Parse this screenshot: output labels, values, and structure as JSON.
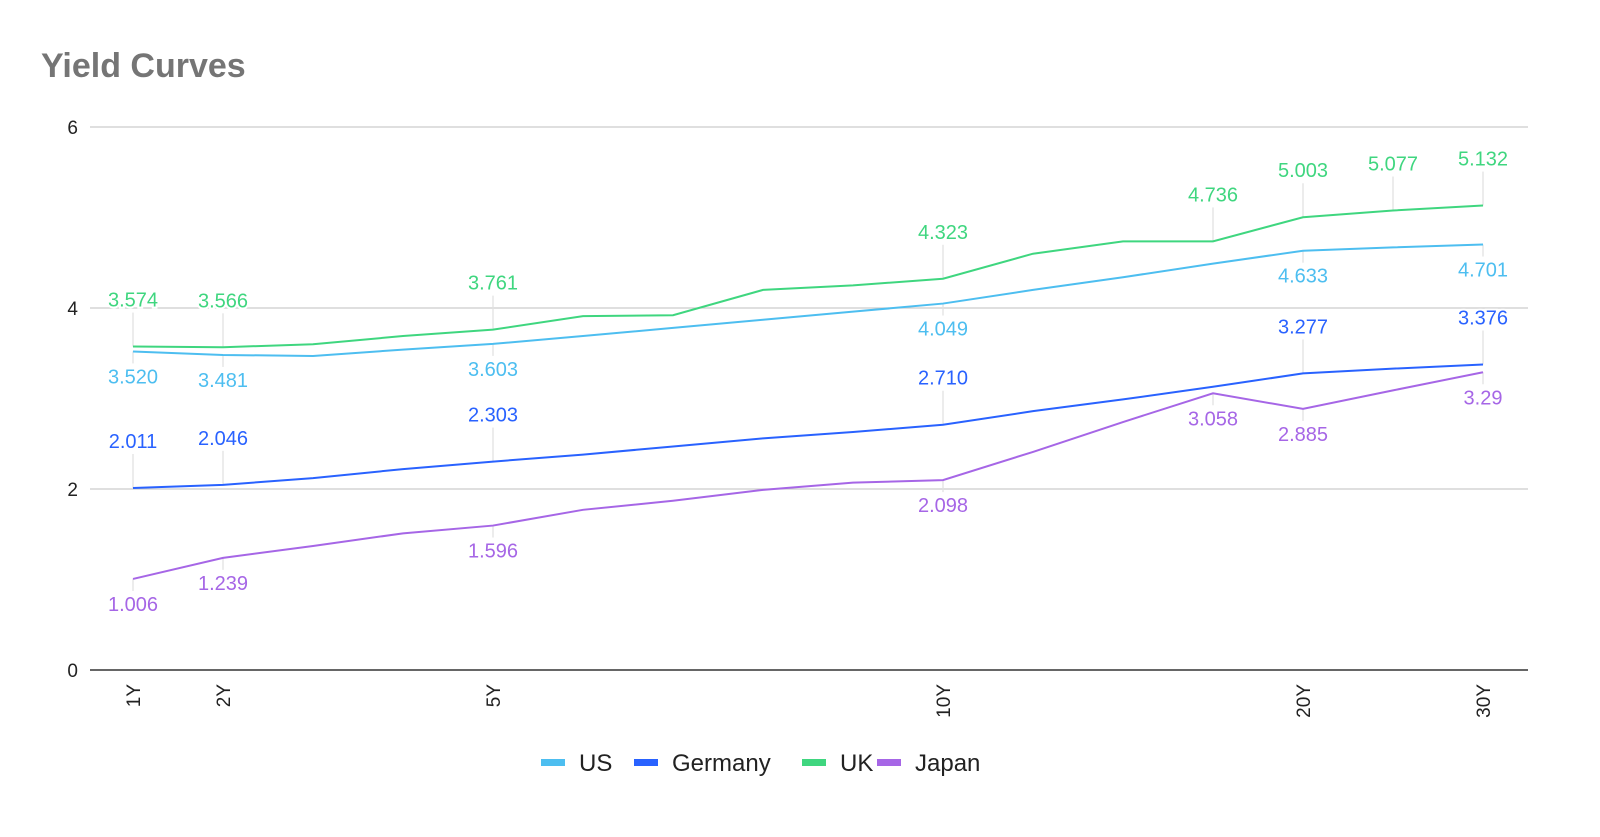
{
  "chart_data": {
    "type": "line",
    "title": "Yield Curves",
    "xlabel": "",
    "ylabel": "",
    "ylim": [
      0,
      6
    ],
    "yticks": [
      0,
      2,
      4,
      6
    ],
    "grid": true,
    "legend_position": "bottom",
    "categories": [
      "1Y",
      "2Y",
      "",
      "",
      "5Y",
      "",
      "",
      "",
      "",
      "10Y",
      "",
      "",
      "",
      "20Y",
      "",
      "30Y"
    ],
    "series": [
      {
        "name": "US",
        "color": "#4DBEF0",
        "values": [
          3.52,
          3.481,
          3.47,
          3.54,
          3.603,
          3.69,
          3.78,
          3.87,
          3.96,
          4.049,
          4.2,
          4.34,
          4.49,
          4.633,
          4.67,
          4.701
        ],
        "labels": [
          "3.520",
          "3.481",
          null,
          null,
          "3.603",
          null,
          null,
          null,
          null,
          "4.049",
          null,
          null,
          null,
          "4.633",
          null,
          "4.701"
        ]
      },
      {
        "name": "Germany",
        "color": "#2962FF",
        "values": [
          2.011,
          2.046,
          2.12,
          2.22,
          2.303,
          2.38,
          2.47,
          2.56,
          2.63,
          2.71,
          2.86,
          2.99,
          3.13,
          3.277,
          3.33,
          3.376
        ],
        "labels": [
          "2.011",
          "2.046",
          null,
          null,
          "2.303",
          null,
          null,
          null,
          null,
          "2.710",
          null,
          null,
          null,
          "3.277",
          null,
          "3.376"
        ]
      },
      {
        "name": "UK",
        "color": "#3FD67F",
        "values": [
          3.574,
          3.566,
          3.6,
          3.69,
          3.761,
          3.91,
          3.92,
          4.2,
          4.25,
          4.323,
          4.6,
          4.736,
          4.736,
          5.003,
          5.077,
          5.132
        ],
        "labels": [
          "3.574",
          "3.566",
          null,
          null,
          "3.761",
          null,
          null,
          null,
          null,
          "4.323",
          null,
          null,
          "4.736",
          "5.003",
          "5.077",
          "5.132"
        ]
      },
      {
        "name": "Japan",
        "color": "#A666E6",
        "values": [
          1.006,
          1.239,
          1.37,
          1.51,
          1.596,
          1.77,
          1.87,
          1.99,
          2.07,
          2.098,
          2.41,
          2.74,
          3.058,
          2.885,
          3.09,
          3.29
        ],
        "labels": [
          "1.006",
          "1.239",
          null,
          null,
          "1.596",
          null,
          null,
          null,
          null,
          "2.098",
          null,
          null,
          "3.058",
          "2.885",
          null,
          "3.29"
        ]
      }
    ]
  }
}
